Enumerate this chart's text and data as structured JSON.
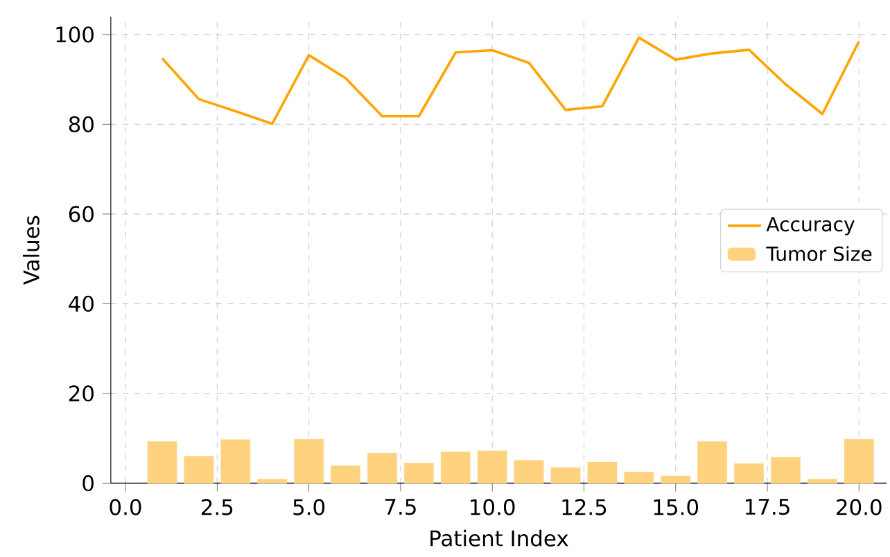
{
  "chart_data": {
    "type": "line",
    "xlabel": "Patient Index",
    "ylabel": "Values",
    "x": [
      1,
      2,
      3,
      4,
      5,
      6,
      7,
      8,
      9,
      10,
      11,
      12,
      13,
      14,
      15,
      16,
      17,
      18,
      19,
      20
    ],
    "xlim": [
      -0.4,
      20.75
    ],
    "ylim": [
      0,
      104
    ],
    "xticks": [
      {
        "value": 0,
        "label": "0.0"
      },
      {
        "value": 2.5,
        "label": "2.5"
      },
      {
        "value": 5,
        "label": "5.0"
      },
      {
        "value": 7.5,
        "label": "7.5"
      },
      {
        "value": 10,
        "label": "10.0"
      },
      {
        "value": 12.5,
        "label": "12.5"
      },
      {
        "value": 15,
        "label": "15.0"
      },
      {
        "value": 17.5,
        "label": "17.5"
      },
      {
        "value": 20,
        "label": "20.0"
      }
    ],
    "yticks": [
      0,
      20,
      40,
      60,
      80,
      100
    ],
    "grid": true,
    "legend": "right",
    "series": [
      {
        "name": "Accuracy",
        "color": "#ffa500",
        "values": [
          94.7,
          85.6,
          82.9,
          80.1,
          95.4,
          90.3,
          81.8,
          81.8,
          96.0,
          96.5,
          93.7,
          83.2,
          84.0,
          99.3,
          94.4,
          95.8,
          96.6,
          88.9,
          82.3,
          98.5
        ]
      },
      {
        "name": "Tumor Size",
        "type": "bar",
        "color": "#ffd280",
        "values": [
          9.3,
          6.0,
          9.7,
          0.9,
          9.8,
          3.9,
          6.7,
          4.5,
          7.0,
          7.2,
          5.1,
          3.5,
          4.7,
          2.5,
          1.6,
          9.3,
          4.4,
          5.8,
          0.9,
          9.8
        ]
      }
    ]
  }
}
